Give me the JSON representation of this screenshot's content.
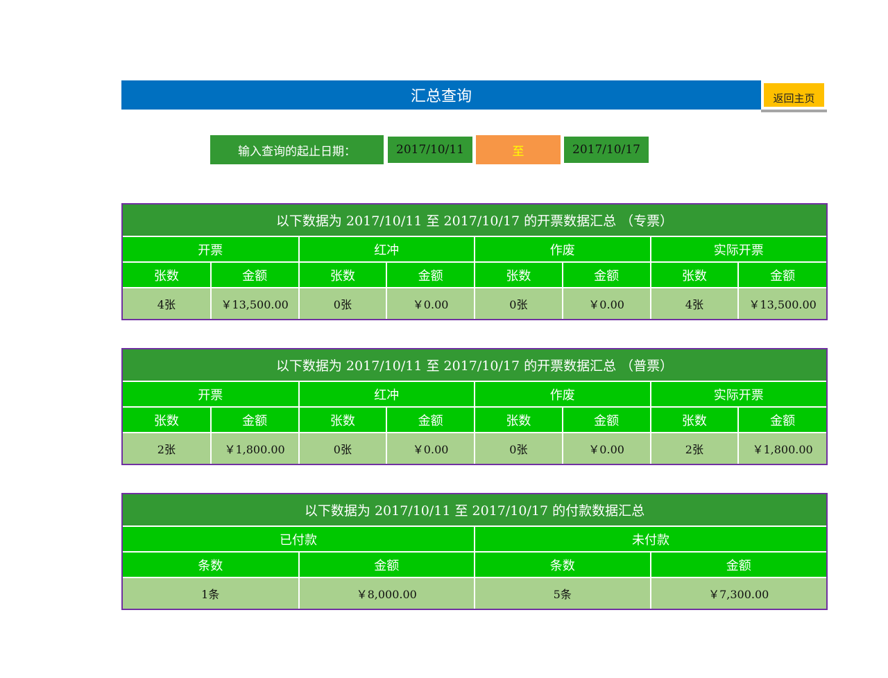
{
  "header": {
    "title": "汇总查询",
    "home_button": "返回主页"
  },
  "query": {
    "label": "输入查询的起止日期：",
    "start_date": "2017/10/11",
    "to": "至",
    "end_date": "2017/10/17"
  },
  "colors": {
    "title_bar": "#0070c0",
    "dark_green": "#339933",
    "bright_green": "#00c800",
    "light_green": "#a9d18e",
    "border": "#7030a0",
    "button": "#ffc000",
    "to_cell": "#f79646"
  },
  "tables": [
    {
      "title": "以下数据为 2017/10/11 至 2017/10/17 的开票数据汇总 （专票）",
      "groups": [
        "开票",
        "红冲",
        "作废",
        "实际开票"
      ],
      "headers": [
        "张数",
        "金额",
        "张数",
        "金额",
        "张数",
        "金额",
        "张数",
        "金额"
      ],
      "values": [
        "4张",
        "￥13,500.00",
        "0张",
        "￥0.00",
        "0张",
        "￥0.00",
        "4张",
        "￥13,500.00"
      ]
    },
    {
      "title": "以下数据为 2017/10/11 至 2017/10/17 的开票数据汇总 （普票）",
      "groups": [
        "开票",
        "红冲",
        "作废",
        "实际开票"
      ],
      "headers": [
        "张数",
        "金额",
        "张数",
        "金额",
        "张数",
        "金额",
        "张数",
        "金额"
      ],
      "values": [
        "2张",
        "￥1,800.00",
        "0张",
        "￥0.00",
        "0张",
        "￥0.00",
        "2张",
        "￥1,800.00"
      ]
    },
    {
      "title": "以下数据为 2017/10/11 至 2017/10/17 的付款数据汇总",
      "groups": [
        "已付款",
        "未付款"
      ],
      "headers": [
        "条数",
        "金额",
        "条数",
        "金额"
      ],
      "values": [
        "1条",
        "￥8,000.00",
        "5条",
        "￥7,300.00"
      ]
    }
  ]
}
